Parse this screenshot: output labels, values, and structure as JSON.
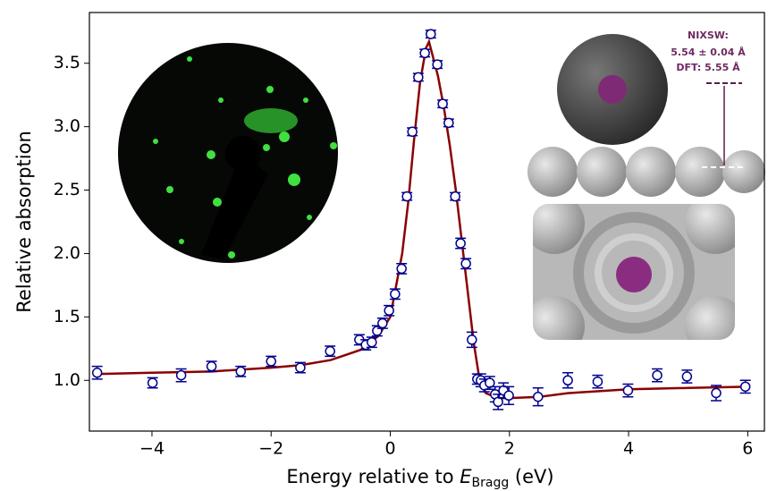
{
  "chart_data": {
    "type": "scatter",
    "ylabel": "Relative absorption",
    "xlabel": {
      "prefix": "Energy relative to ",
      "symbol": "E",
      "subscript": "Bragg",
      "suffix": " (eV)"
    },
    "xlim": [
      -5.05,
      6.28
    ],
    "ylim": [
      0.6,
      3.9
    ],
    "xticks": [
      {
        "value": -4,
        "label": "−4"
      },
      {
        "value": -2,
        "label": "−2"
      },
      0,
      2,
      4,
      6
    ],
    "yticks": [
      {
        "value": 1,
        "label": "1.0"
      },
      1.5,
      {
        "value": 2,
        "label": "2.0"
      },
      2.5,
      {
        "value": 3,
        "label": "3.0"
      },
      3.5
    ],
    "annotations": [
      "NIXSW:",
      "5.54 ± 0.04 Å",
      "DFT: 5.55 Å"
    ],
    "series": [
      {
        "color": "#00008b",
        "x": [
          -4.92,
          -3.99,
          -3.51,
          -3.0,
          -2.51,
          -2.0,
          -1.51,
          -1.01,
          -0.52,
          -0.41,
          -0.31,
          -0.22,
          -0.13,
          -0.02,
          0.08,
          0.19,
          0.28,
          0.37,
          0.47,
          0.58,
          0.68,
          0.79,
          0.88,
          0.98,
          1.09,
          1.18,
          1.27,
          1.37,
          1.46,
          1.52,
          1.58,
          1.67,
          1.76,
          1.81,
          1.9,
          1.99,
          2.48,
          2.98,
          3.48,
          3.99,
          4.48,
          4.98,
          5.47,
          5.96
        ],
        "values": [
          1.06,
          0.98,
          1.04,
          1.11,
          1.07,
          1.15,
          1.1,
          1.23,
          1.32,
          1.28,
          1.3,
          1.39,
          1.45,
          1.55,
          1.68,
          1.88,
          2.45,
          2.96,
          3.39,
          3.58,
          3.73,
          3.49,
          3.18,
          3.03,
          2.45,
          2.08,
          1.92,
          1.32,
          1.01,
          1.0,
          0.96,
          0.98,
          0.89,
          0.83,
          0.92,
          0.88,
          0.87,
          1.0,
          0.99,
          0.92,
          1.04,
          1.03,
          0.9,
          0.95
        ],
        "errors": [
          0.05,
          0.04,
          0.05,
          0.04,
          0.04,
          0.04,
          0.04,
          0.04,
          0.04,
          0.04,
          0.04,
          0.04,
          0.04,
          0.04,
          0.04,
          0.04,
          0.03,
          0.03,
          0.03,
          0.03,
          0.03,
          0.03,
          0.03,
          0.03,
          0.03,
          0.04,
          0.04,
          0.06,
          0.04,
          0.05,
          0.05,
          0.05,
          0.06,
          0.06,
          0.06,
          0.07,
          0.07,
          0.06,
          0.05,
          0.05,
          0.05,
          0.05,
          0.06,
          0.05
        ]
      },
      {
        "color": "#8b0000",
        "x": [
          -4.9,
          -4,
          -3,
          -2,
          -1.5,
          -1,
          -0.5,
          -0.2,
          0,
          0.2,
          0.3,
          0.4,
          0.5,
          0.6,
          0.65,
          0.8,
          0.9,
          1.0,
          1.1,
          1.2,
          1.3,
          1.4,
          1.5,
          1.6,
          1.8,
          2.0,
          2.5,
          3,
          4,
          5,
          6
        ],
        "values": [
          1.05,
          1.06,
          1.07,
          1.1,
          1.12,
          1.16,
          1.24,
          1.35,
          1.5,
          2.0,
          2.4,
          2.9,
          3.35,
          3.62,
          3.67,
          3.4,
          3.15,
          2.85,
          2.5,
          2.1,
          1.7,
          1.3,
          1.0,
          0.9,
          0.86,
          0.86,
          0.87,
          0.9,
          0.93,
          0.94,
          0.95
        ]
      }
    ]
  }
}
